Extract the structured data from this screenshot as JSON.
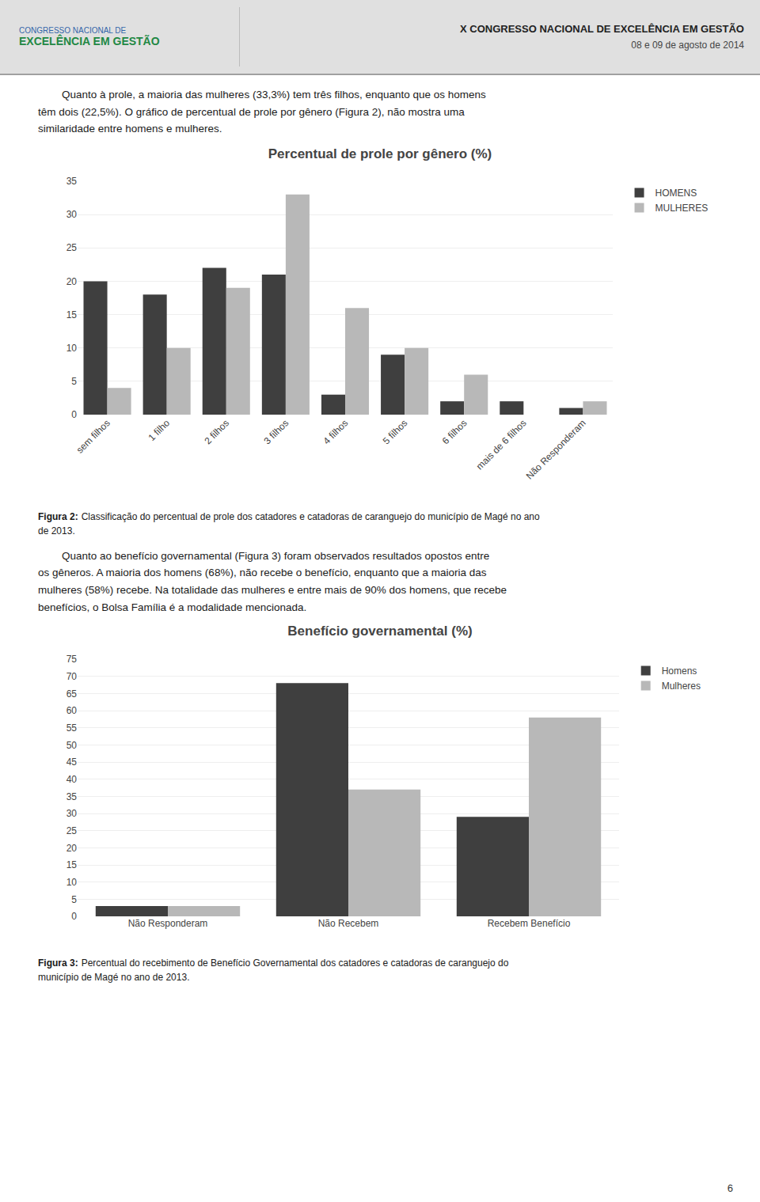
{
  "header": {
    "left": [
      "CONGRESSO NACIONAL DE",
      "EXCELÊNCIA EM GESTÃO"
    ],
    "right": [
      "X CONGRESSO NACIONAL DE EXCELÊNCIA EM GESTÃO",
      "08 e 09 de agosto de 2014"
    ]
  },
  "body_text": [
    [
      "        Quanto à prole, a maioria das mulheres (33,3%) tem três filhos, enquanto que os homens",
      "têm dois (22,5%). O gráfico de percentual de prole por gênero (Figura 2), não mostra uma",
      "similaridade entre homens e mulheres."
    ],
    [
      "        Quanto ao benefício governamental (Figura 3) foram observados resultados opostos entre",
      "os gêneros. A maioria dos homens (68%), não recebe o benefício, enquanto que a maioria das",
      "mulheres (58%) recebe. Na totalidade das mulheres e entre mais de 90% dos homens, que recebe",
      "benefícios, o Bolsa Família é a modalidade mencionada."
    ]
  ],
  "captions": [
    {
      "label": "Figura 2:",
      "lines": [
        "Classificação do percentual de prole dos catadores e catadoras de caranguejo do município de Magé no ano",
        "de 2013."
      ]
    },
    {
      "label": "Figura 3:",
      "lines": [
        "Percentual do recebimento de Benefício Governamental dos catadores e catadoras de caranguejo do",
        "município de Magé no ano de 2013."
      ]
    }
  ],
  "page_number": "6",
  "chart_data": [
    {
      "type": "bar",
      "title": "Percentual de prole por gênero (%)",
      "categories": [
        "sem filhos",
        "1 filho",
        "2 filhos",
        "3 filhos",
        "4 filhos",
        "5 filhos",
        "6 filhos",
        "mais de 6 filhos",
        "Não Responderam"
      ],
      "series": [
        {
          "name": "HOMENS",
          "color": "#3f3f3f",
          "values": [
            20,
            18,
            22,
            21,
            3,
            9,
            2,
            2,
            1
          ]
        },
        {
          "name": "MULHERES",
          "color": "#b8b8b8",
          "values": [
            4,
            10,
            19,
            33,
            16,
            10,
            6,
            0,
            2
          ]
        }
      ],
      "ylim": [
        0,
        35
      ],
      "yticks": [
        0,
        5,
        10,
        15,
        20,
        25,
        30,
        35
      ],
      "grid": true,
      "legend": "right"
    },
    {
      "type": "bar",
      "title": "Benefício governamental (%)",
      "categories": [
        "Não Responderam",
        "Não Recebem",
        "Recebem Benefício"
      ],
      "series": [
        {
          "name": "Homens",
          "color": "#3f3f3f",
          "values": [
            3,
            68,
            29
          ]
        },
        {
          "name": "Mulheres",
          "color": "#b8b8b8",
          "values": [
            3,
            37,
            58
          ]
        }
      ],
      "ylim": [
        0,
        75
      ],
      "yticks": [
        0,
        5,
        10,
        15,
        20,
        25,
        30,
        35,
        40,
        45,
        50,
        55,
        60,
        65,
        70,
        75
      ],
      "grid": true,
      "legend": "right"
    }
  ]
}
